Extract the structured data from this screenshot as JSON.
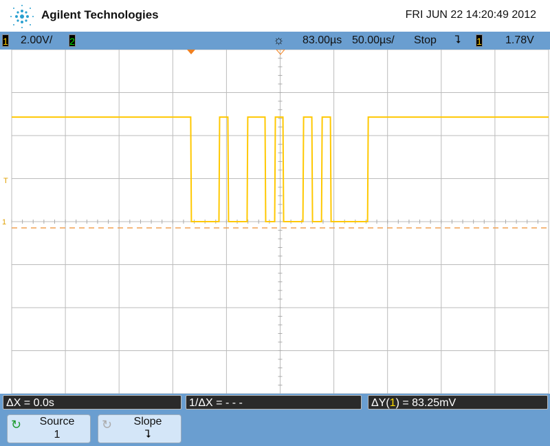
{
  "header": {
    "brand": "Agilent Technologies",
    "datetime": "FRI JUN 22 14:20:49 2012"
  },
  "status": {
    "ch1_label": "1",
    "ch1_scale": "2.00V/",
    "ch2_label": "2",
    "delay": "83.00µs",
    "timebase": "50.00µs/",
    "run_state": "Stop",
    "trigger_slope_symbol": "⮧",
    "trigger_source": "1",
    "trigger_level": "1.78V",
    "ch1_color": "#ffcc00",
    "ch2_color": "#00e000"
  },
  "display": {
    "ch1_marker": "1",
    "trigger_marker": "T",
    "grid_divisions_x": 10,
    "grid_divisions_y": 8,
    "trace_color": "#ffc800",
    "waveform": {
      "time_unit": "µs",
      "volt_unit": "V",
      "high_level": 4.86,
      "low_level": 0,
      "edges": [
        -83.3,
        -57,
        -48.7,
        -30.8,
        -14.1,
        -5.1,
        2.6,
        21.2,
        29.5,
        38.5,
        46.8,
        81.4
      ]
    },
    "cursor_level": -0.29
  },
  "measurements": {
    "dx": "ΔX = 0.0s",
    "inv_dx": "1/ΔX = - - -",
    "dy_prefix": "ΔY(",
    "dy_ch": "1",
    "dy_suffix": ") = 83.25mV"
  },
  "softkeys": [
    {
      "label": "Source",
      "value": "1",
      "icon": "rotate-icon"
    },
    {
      "label": "Slope",
      "value": "⮧",
      "icon": "rotate-icon"
    }
  ]
}
